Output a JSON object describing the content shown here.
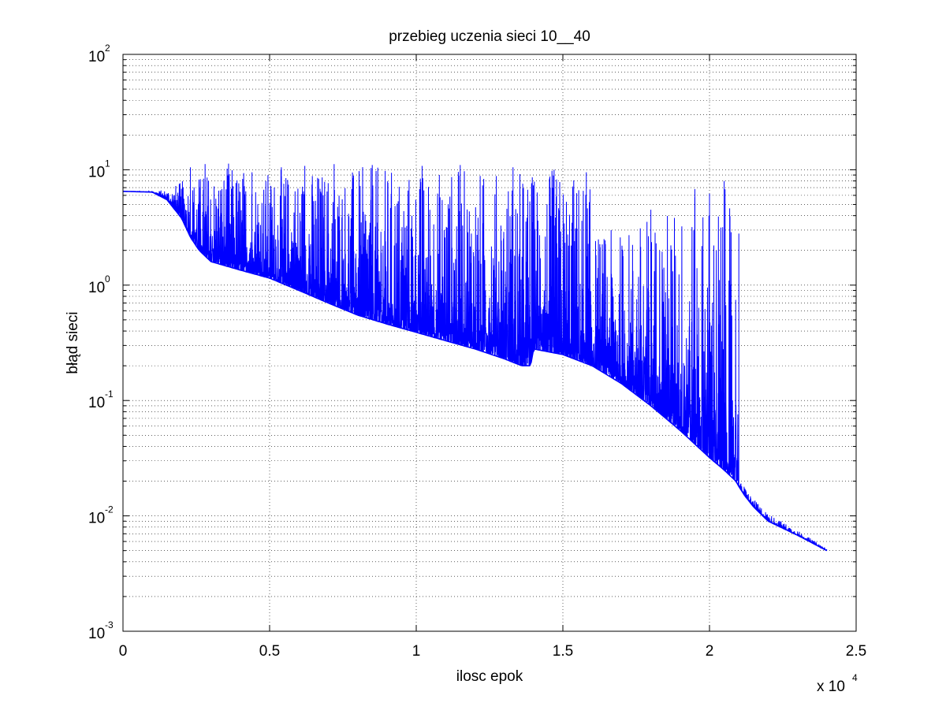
{
  "chart_data": {
    "type": "line",
    "title": "przebieg uczenia sieci 10__40",
    "xlabel": "ilosc epok",
    "ylabel": "błąd sieci",
    "x_multiplier_label": "x 10",
    "x_multiplier_exp": "4",
    "xlim": [
      0,
      25000
    ],
    "ylim": [
      0.001,
      100
    ],
    "yscale": "log",
    "grid": true,
    "line_color": "#0000ff",
    "x_ticks": [
      {
        "value": 0,
        "label": "0"
      },
      {
        "value": 5000,
        "label": "0.5"
      },
      {
        "value": 10000,
        "label": "1"
      },
      {
        "value": 15000,
        "label": "1.5"
      },
      {
        "value": 20000,
        "label": "2"
      },
      {
        "value": 25000,
        "label": "2.5"
      }
    ],
    "y_ticks": [
      {
        "value": 0.001,
        "base": "10",
        "exp": "-3"
      },
      {
        "value": 0.01,
        "base": "10",
        "exp": "-2"
      },
      {
        "value": 0.1,
        "base": "10",
        "exp": "-1"
      },
      {
        "value": 1,
        "base": "10",
        "exp": "0"
      },
      {
        "value": 10,
        "base": "10",
        "exp": "1"
      },
      {
        "value": 100,
        "base": "10",
        "exp": "2"
      }
    ],
    "series": [
      {
        "lower_envelope": {
          "x": [
            0,
            1000,
            1500,
            2000,
            2300,
            2600,
            3000,
            4000,
            5000,
            6000,
            7000,
            8000,
            9000,
            10000,
            11000,
            12000,
            13000,
            13600,
            13900,
            14000,
            15000,
            16000,
            17000,
            18000,
            19000,
            20000,
            20500,
            20900,
            21000,
            21200,
            21500,
            22000,
            23000,
            24000
          ],
          "y": [
            6.5,
            6.4,
            5.5,
            3.8,
            2.6,
            2.0,
            1.6,
            1.35,
            1.15,
            0.9,
            0.7,
            0.55,
            0.46,
            0.39,
            0.33,
            0.28,
            0.23,
            0.2,
            0.2,
            0.28,
            0.25,
            0.2,
            0.14,
            0.09,
            0.055,
            0.032,
            0.025,
            0.02,
            0.018,
            0.015,
            0.012,
            0.009,
            0.0068,
            0.005
          ]
        },
        "upper_envelope": {
          "x": [
            0,
            1000,
            1500,
            2000,
            3000,
            4000,
            5000,
            6000,
            7000,
            8000,
            9000,
            10000,
            11000,
            12000,
            13000,
            14000,
            15000,
            15900,
            16000,
            17000,
            18000,
            19000,
            20000,
            20500,
            20900,
            21000,
            21200,
            21500,
            22000,
            23000,
            24000
          ],
          "y": [
            6.5,
            6.5,
            6.8,
            8.0,
            10.5,
            11.0,
            10.0,
            10.5,
            10.8,
            10.5,
            11.0,
            10.5,
            10.8,
            10.5,
            10.0,
            10.5,
            10.0,
            9.5,
            3.0,
            3.0,
            4.5,
            5.5,
            6.5,
            7.5,
            3.0,
            0.02,
            0.018,
            0.014,
            0.0105,
            0.0075,
            0.0052
          ]
        },
        "spikes": [
          {
            "x": 2300,
            "y": 10.5
          },
          {
            "x": 2800,
            "y": 11.2
          },
          {
            "x": 3600,
            "y": 11.3
          },
          {
            "x": 4400,
            "y": 9.5
          },
          {
            "x": 5400,
            "y": 10.5
          },
          {
            "x": 6200,
            "y": 10.8
          },
          {
            "x": 7200,
            "y": 11.2
          },
          {
            "x": 8500,
            "y": 11.0
          },
          {
            "x": 10200,
            "y": 10.8
          },
          {
            "x": 11500,
            "y": 11.0
          },
          {
            "x": 13300,
            "y": 10.5
          },
          {
            "x": 14700,
            "y": 10.0
          },
          {
            "x": 15800,
            "y": 9.5
          },
          {
            "x": 18000,
            "y": 4.5
          },
          {
            "x": 19500,
            "y": 6.8
          },
          {
            "x": 20000,
            "y": 6.2
          },
          {
            "x": 20500,
            "y": 8.0
          },
          {
            "x": 21000,
            "y": 2.8
          }
        ]
      }
    ]
  }
}
